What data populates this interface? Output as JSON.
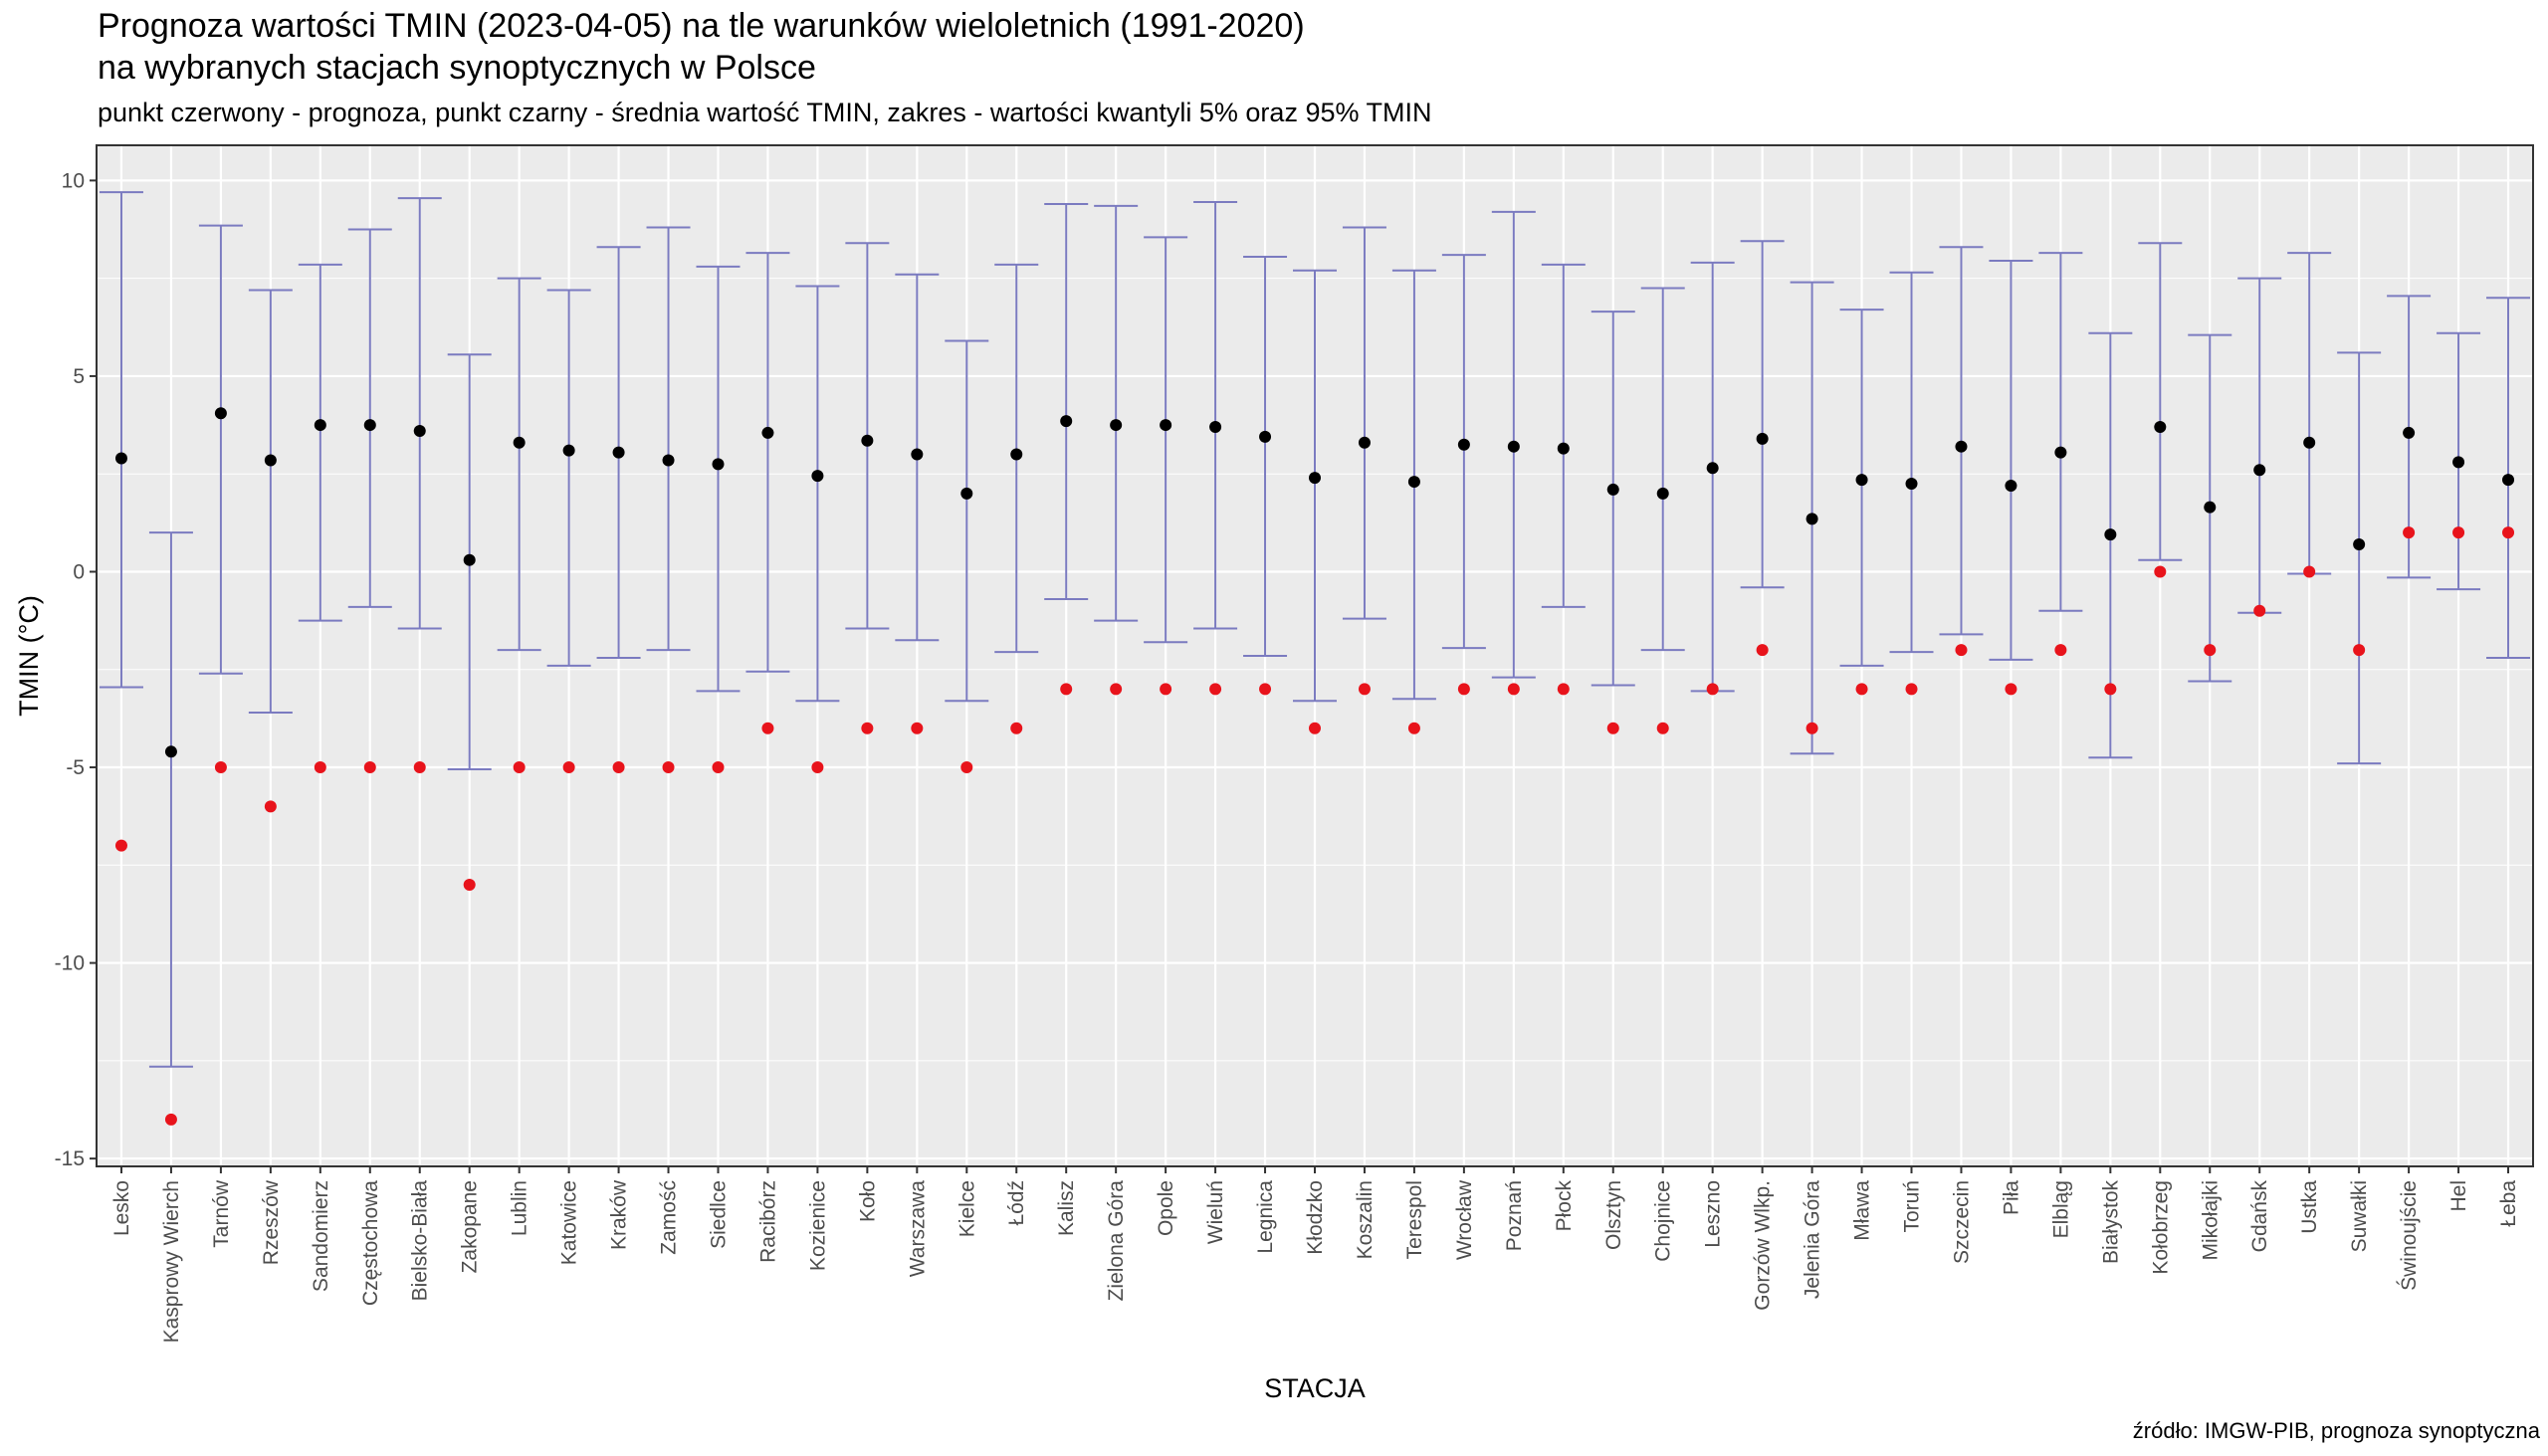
{
  "title": "Prognoza wartości TMIN (2023-04-05) na tle warunków wieloletnich (1991-2020)",
  "title_line2": "na wybranych stacjach synoptycznych w Polsce",
  "subtitle": "punkt czerwony - prognoza, punkt czarny - średnia wartość TMIN, zakres - wartości kwantyli 5% oraz 95% TMIN",
  "caption": "źródło: IMGW-PIB, prognoza synoptyczna",
  "colors": {
    "panel_bg": "#ebebeb",
    "grid": "#ffffff",
    "errorbar": "#7b7bc0",
    "forecast": "#e8131b",
    "mean": "#000000"
  },
  "chart_data": {
    "type": "errorbar",
    "xlabel": "STACJA",
    "ylabel": "TMIN (°C)",
    "ylim": [
      -15.2,
      10.9
    ],
    "yticks": [
      -15,
      -10,
      -5,
      0,
      5,
      10
    ],
    "grid": true,
    "categories": [
      "Lesko",
      "Kasprowy Wierch",
      "Tarnów",
      "Rzeszów",
      "Sandomierz",
      "Częstochowa",
      "Bielsko-Biała",
      "Zakopane",
      "Lublin",
      "Katowice",
      "Kraków",
      "Zamość",
      "Siedlce",
      "Racibórz",
      "Kozienice",
      "Koło",
      "Warszawa",
      "Kielce",
      "Łódź",
      "Kalisz",
      "Zielona Góra",
      "Opole",
      "Wieluń",
      "Legnica",
      "Kłodzko",
      "Koszalin",
      "Terespol",
      "Wrocław",
      "Poznań",
      "Płock",
      "Olsztyn",
      "Chojnice",
      "Leszno",
      "Gorzów Wlkp.",
      "Jelenia Góra",
      "Mława",
      "Toruń",
      "Szczecin",
      "Piła",
      "Elbląg",
      "Białystok",
      "Kołobrzeg",
      "Mikołajki",
      "Gdańsk",
      "Ustka",
      "Suwałki",
      "Świnoujście",
      "Hel",
      "Łeba"
    ],
    "series": [
      {
        "name": "q5",
        "values": [
          -2.95,
          -12.65,
          -2.6,
          -3.6,
          -1.25,
          -0.9,
          -1.45,
          -5.05,
          -2.0,
          -2.4,
          -2.2,
          -2.0,
          -3.05,
          -2.55,
          -3.3,
          -1.45,
          -1.75,
          -3.3,
          -2.05,
          -0.7,
          -1.25,
          -1.8,
          -1.45,
          -2.15,
          -3.3,
          -1.2,
          -3.25,
          -1.95,
          -2.7,
          -0.9,
          -2.9,
          -2.0,
          -3.05,
          -0.4,
          -4.65,
          -2.4,
          -2.05,
          -1.6,
          -2.25,
          -1.0,
          -4.75,
          0.3,
          -2.8,
          -1.05,
          -0.05,
          -4.9,
          -0.15,
          -0.45,
          -2.2
        ]
      },
      {
        "name": "q95",
        "values": [
          9.7,
          1.0,
          8.85,
          7.2,
          7.85,
          8.75,
          9.55,
          5.55,
          7.5,
          7.2,
          8.3,
          8.8,
          7.8,
          8.15,
          7.3,
          8.4,
          7.6,
          5.9,
          7.85,
          9.4,
          9.35,
          8.55,
          9.45,
          8.05,
          7.7,
          8.8,
          7.7,
          8.1,
          9.2,
          7.85,
          6.65,
          7.25,
          7.9,
          8.45,
          7.4,
          6.7,
          7.65,
          8.3,
          7.95,
          8.15,
          6.1,
          8.4,
          6.05,
          7.5,
          8.15,
          5.6,
          7.05,
          6.1,
          7.0
        ]
      },
      {
        "name": "mean",
        "values": [
          2.9,
          -4.6,
          4.05,
          2.85,
          3.75,
          3.75,
          3.6,
          0.3,
          3.3,
          3.1,
          3.05,
          2.85,
          2.75,
          3.55,
          2.45,
          3.35,
          3.0,
          2.0,
          3.0,
          3.85,
          3.75,
          3.75,
          3.7,
          3.45,
          2.4,
          3.3,
          2.3,
          3.25,
          3.2,
          3.15,
          2.1,
          2.0,
          2.65,
          3.4,
          1.35,
          2.35,
          2.25,
          3.2,
          2.2,
          3.05,
          0.95,
          3.7,
          1.65,
          2.6,
          3.3,
          0.7,
          3.55,
          2.8,
          2.35
        ]
      },
      {
        "name": "prognoza",
        "values": [
          -7,
          -14,
          -5,
          -6,
          -5,
          -5,
          -5,
          -8,
          -5,
          -5,
          -5,
          -5,
          -5,
          -4,
          -5,
          -4,
          -4,
          -5,
          -4,
          -3,
          -3,
          -3,
          -3,
          -3,
          -4,
          -3,
          -4,
          -3,
          -3,
          -3,
          -4,
          -4,
          -3,
          -2,
          -4,
          -3,
          -3,
          -2,
          -3,
          -2,
          -3,
          0,
          -2,
          -1,
          0,
          -2,
          1,
          1,
          1
        ]
      }
    ]
  }
}
